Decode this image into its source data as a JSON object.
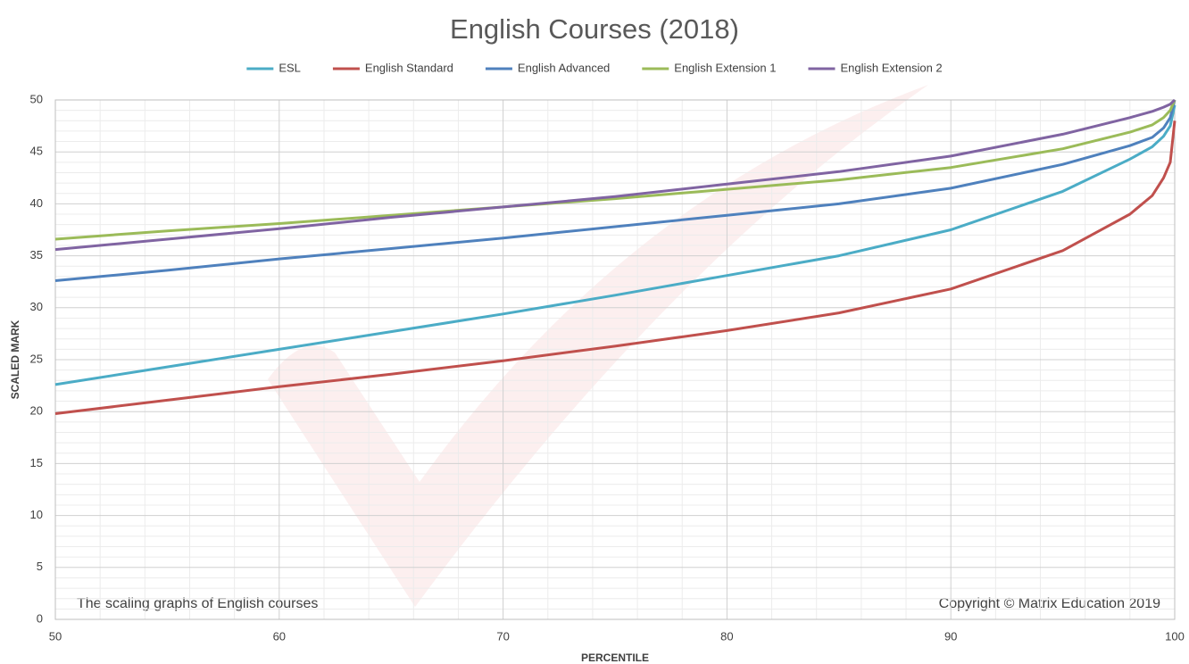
{
  "chart_data": {
    "type": "line",
    "title": "English Courses (2018)",
    "xlabel": "PERCENTILE",
    "ylabel": "SCALED MARK",
    "annotations": [
      "The scaling  graphs of English courses",
      "Copyright © Matrix Education 2019"
    ],
    "x": [
      50,
      55,
      60,
      65,
      70,
      75,
      80,
      85,
      90,
      95,
      98,
      99,
      99.5,
      99.8,
      100
    ],
    "series": [
      {
        "name": "ESL",
        "color": "#4bacc6",
        "values": [
          22.6,
          24.3,
          26.0,
          27.7,
          29.4,
          31.2,
          33.1,
          35.0,
          37.5,
          41.2,
          44.3,
          45.5,
          46.5,
          47.5,
          49.5
        ]
      },
      {
        "name": "English Standard",
        "color": "#c0504d",
        "values": [
          19.8,
          21.1,
          22.4,
          23.6,
          24.9,
          26.3,
          27.8,
          29.5,
          31.8,
          35.5,
          39.0,
          40.8,
          42.5,
          44.0,
          48.0
        ]
      },
      {
        "name": "English Advanced",
        "color": "#4f81bd",
        "values": [
          32.6,
          33.6,
          34.7,
          35.7,
          36.7,
          37.8,
          38.9,
          40.0,
          41.5,
          43.8,
          45.6,
          46.4,
          47.3,
          48.3,
          50.0
        ]
      },
      {
        "name": "English Extension 1",
        "color": "#9bbb59",
        "values": [
          36.6,
          37.4,
          38.1,
          38.9,
          39.7,
          40.5,
          41.4,
          42.3,
          43.5,
          45.3,
          46.9,
          47.6,
          48.3,
          49.0,
          50.0
        ]
      },
      {
        "name": "English Extension 2",
        "color": "#8064a2",
        "values": [
          35.6,
          36.6,
          37.6,
          38.7,
          39.7,
          40.7,
          41.9,
          43.1,
          44.6,
          46.7,
          48.3,
          48.9,
          49.3,
          49.6,
          50.0
        ]
      }
    ],
    "xlim": [
      50,
      100
    ],
    "xticks": [
      50,
      60,
      70,
      80,
      90,
      100
    ],
    "ylim": [
      0,
      50
    ],
    "yticks": [
      0,
      5,
      10,
      15,
      20,
      25,
      30,
      35,
      40,
      45,
      50
    ],
    "grid": true,
    "legend": "top"
  }
}
